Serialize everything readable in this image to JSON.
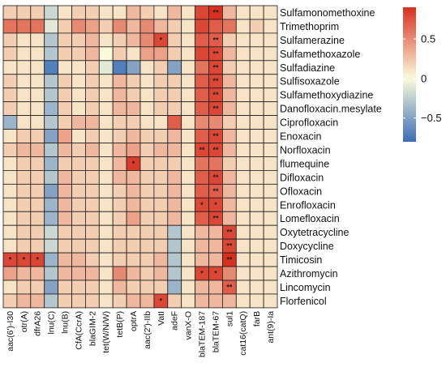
{
  "chart_data": {
    "type": "heatmap",
    "rows": [
      "Sulfamonomethoxine",
      "Trimethoprim",
      "Sulfamerazine",
      "Sulfamethoxazole",
      "Sulfadiazine",
      "Sulfisoxazole",
      "Sulfamethoxydiazine",
      "Danofloxacin.mesylate",
      "Ciprofloxacin",
      "Enoxacin",
      "Norfloxacin",
      "flumequine",
      "Difloxacin",
      "Ofloxacin",
      "Enrofloxacin",
      "Lomefloxacin",
      "Oxytetracycline",
      "Doxycycline",
      "Timicosin",
      "Azithromycin",
      "Lincomycin",
      "Florfenicol"
    ],
    "columns": [
      "aac(6')-I30",
      "otr(A)",
      "dfrA26",
      "lnu(C)",
      "lnu(B)",
      "CfA(CcrA)",
      "blaGIM-2",
      "tet(W/N/W)",
      "tetB(P)",
      "optrA",
      "aac(2')-IIb",
      "VatI",
      "adeF",
      "vanX-O",
      "blaTEM-187",
      "blaTEM-67",
      "sul1",
      "cat16(catQ)",
      "farB",
      "ant(9)-Ia"
    ],
    "values": [
      [
        0.2,
        0.2,
        0.2,
        -0.2,
        0.1,
        0.2,
        0.2,
        0.1,
        0.1,
        0.3,
        0.2,
        0.1,
        0.3,
        0.1,
        0.8,
        0.9,
        0.3,
        0.1,
        0.1,
        0.1
      ],
      [
        0.6,
        0.6,
        0.6,
        -0.1,
        0.2,
        0.5,
        0.4,
        0.2,
        0.5,
        0.3,
        0.5,
        0.3,
        0.2,
        0.1,
        0.8,
        0.7,
        0.6,
        0.1,
        0.2,
        0.1
      ],
      [
        0.2,
        0.1,
        0.1,
        -0.3,
        0.2,
        0.2,
        0.3,
        0.1,
        0.2,
        0.3,
        0.5,
        0.8,
        0.2,
        0.1,
        0.7,
        0.7,
        0.2,
        0.1,
        0.1,
        0.1
      ],
      [
        0.2,
        0.1,
        0.1,
        -0.3,
        0.2,
        0.2,
        0.3,
        0.0,
        0.2,
        0.1,
        0.4,
        0.4,
        0.2,
        0.1,
        0.8,
        0.8,
        0.3,
        0.1,
        0.1,
        0.1
      ],
      [
        0.1,
        0.1,
        0.1,
        -0.7,
        0.1,
        0.1,
        0.2,
        -0.1,
        -0.7,
        -0.5,
        0.1,
        0.2,
        -0.5,
        0.1,
        0.6,
        0.8,
        0.2,
        0.1,
        0.1,
        0.1
      ],
      [
        0.2,
        0.1,
        0.1,
        -0.3,
        0.2,
        0.1,
        0.2,
        0.1,
        0.3,
        0.2,
        0.1,
        0.2,
        0.2,
        0.1,
        0.7,
        0.8,
        0.3,
        0.1,
        0.1,
        0.1
      ],
      [
        0.2,
        0.1,
        0.1,
        -0.3,
        0.2,
        0.1,
        0.2,
        0.1,
        0.3,
        0.2,
        0.1,
        0.2,
        0.2,
        0.1,
        0.7,
        0.8,
        0.3,
        0.1,
        0.1,
        0.1
      ],
      [
        0.2,
        0.1,
        0.1,
        -0.4,
        0.2,
        0.1,
        0.2,
        0.1,
        0.3,
        0.3,
        0.1,
        0.2,
        0.2,
        0.1,
        0.7,
        0.8,
        0.3,
        0.1,
        0.1,
        0.1
      ],
      [
        -0.4,
        0.1,
        0.1,
        -0.3,
        0.2,
        0.3,
        0.3,
        0.1,
        0.2,
        0.2,
        0.1,
        0.1,
        0.7,
        0.1,
        0.5,
        0.5,
        0.2,
        0.1,
        0.1,
        0.1
      ],
      [
        0.1,
        0.2,
        0.2,
        -0.5,
        0.4,
        0.1,
        0.2,
        0.1,
        0.2,
        0.3,
        0.2,
        0.2,
        0.3,
        0.1,
        0.7,
        0.8,
        0.3,
        0.1,
        0.1,
        0.1
      ],
      [
        0.2,
        0.3,
        0.3,
        -0.3,
        0.3,
        0.2,
        0.3,
        0.1,
        0.3,
        0.4,
        0.2,
        0.3,
        0.3,
        0.1,
        0.8,
        0.8,
        0.3,
        0.1,
        0.1,
        0.1
      ],
      [
        0.1,
        0.2,
        0.2,
        -0.4,
        0.2,
        0.2,
        0.2,
        0.1,
        0.3,
        0.85,
        0.2,
        0.2,
        0.2,
        0.1,
        0.6,
        0.6,
        0.2,
        0.1,
        0.1,
        0.1
      ],
      [
        0.1,
        0.2,
        0.2,
        -0.3,
        0.3,
        0.2,
        0.2,
        0.1,
        0.3,
        0.3,
        0.2,
        0.2,
        0.3,
        0.1,
        0.7,
        0.8,
        0.3,
        0.1,
        0.1,
        0.1
      ],
      [
        0.1,
        0.2,
        0.2,
        -0.5,
        0.3,
        0.2,
        0.2,
        0.1,
        0.2,
        0.3,
        0.2,
        0.2,
        0.3,
        0.1,
        0.7,
        0.7,
        0.3,
        0.1,
        0.1,
        0.1
      ],
      [
        0.1,
        0.2,
        0.2,
        -0.4,
        0.3,
        0.2,
        0.2,
        0.1,
        0.2,
        0.3,
        0.2,
        0.2,
        0.3,
        0.1,
        0.8,
        0.8,
        0.3,
        0.1,
        0.1,
        0.1
      ],
      [
        0.1,
        0.2,
        0.2,
        -0.4,
        0.3,
        0.2,
        0.2,
        0.1,
        0.2,
        0.4,
        0.2,
        0.2,
        0.3,
        0.1,
        0.7,
        0.8,
        0.3,
        0.1,
        0.1,
        0.1
      ],
      [
        0.1,
        0.2,
        0.2,
        -0.2,
        0.2,
        0.2,
        0.2,
        0.1,
        0.2,
        0.2,
        0.2,
        0.2,
        -0.3,
        0.1,
        0.3,
        0.3,
        0.8,
        0.1,
        0.1,
        0.1
      ],
      [
        0.1,
        0.2,
        0.2,
        -0.2,
        0.2,
        0.2,
        0.2,
        0.1,
        0.2,
        0.2,
        0.2,
        0.2,
        -0.3,
        0.1,
        0.3,
        0.3,
        0.8,
        0.1,
        0.1,
        0.1
      ],
      [
        0.8,
        0.8,
        0.8,
        -0.4,
        0.3,
        0.3,
        0.2,
        0.1,
        0.2,
        0.2,
        0.2,
        0.3,
        -0.3,
        0.1,
        0.3,
        0.3,
        0.9,
        0.1,
        0.1,
        0.1
      ],
      [
        0.4,
        0.3,
        0.3,
        -0.3,
        0.3,
        0.3,
        0.3,
        0.1,
        0.5,
        0.3,
        0.2,
        0.3,
        -0.3,
        0.1,
        0.8,
        0.8,
        0.5,
        0.1,
        0.1,
        0.1
      ],
      [
        0.1,
        0.2,
        0.2,
        -0.5,
        0.2,
        0.2,
        0.2,
        0.1,
        0.3,
        0.2,
        0.2,
        0.2,
        -0.4,
        0.1,
        0.3,
        0.3,
        0.7,
        0.1,
        0.1,
        0.1
      ],
      [
        0.2,
        0.3,
        0.3,
        -0.3,
        0.2,
        0.2,
        0.2,
        0.1,
        0.2,
        0.3,
        0.3,
        0.8,
        0.2,
        0.1,
        0.3,
        0.3,
        0.3,
        0.1,
        0.1,
        0.1
      ]
    ],
    "significance": [
      [
        "",
        "",
        "",
        "",
        "",
        "",
        "",
        "",
        "",
        "",
        "",
        "",
        "",
        "",
        "",
        "**",
        "",
        "",
        "",
        ""
      ],
      [
        "",
        "",
        "",
        "",
        "",
        "",
        "",
        "",
        "",
        "",
        "",
        "",
        "",
        "",
        "",
        "",
        "",
        "",
        "",
        ""
      ],
      [
        "",
        "",
        "",
        "",
        "",
        "",
        "",
        "",
        "",
        "",
        "",
        "*",
        "",
        "",
        "",
        "**",
        "",
        "",
        "",
        ""
      ],
      [
        "",
        "",
        "",
        "",
        "",
        "",
        "",
        "",
        "",
        "",
        "",
        "",
        "",
        "",
        "",
        "**",
        "",
        "",
        "",
        ""
      ],
      [
        "",
        "",
        "",
        "",
        "",
        "",
        "",
        "",
        "",
        "",
        "",
        "",
        "",
        "",
        "",
        "**",
        "",
        "",
        "",
        ""
      ],
      [
        "",
        "",
        "",
        "",
        "",
        "",
        "",
        "",
        "",
        "",
        "",
        "",
        "",
        "",
        "",
        "**",
        "",
        "",
        "",
        ""
      ],
      [
        "",
        "",
        "",
        "",
        "",
        "",
        "",
        "",
        "",
        "",
        "",
        "",
        "",
        "",
        "",
        "**",
        "",
        "",
        "",
        ""
      ],
      [
        "",
        "",
        "",
        "",
        "",
        "",
        "",
        "",
        "",
        "",
        "",
        "",
        "",
        "",
        "",
        "**",
        "",
        "",
        "",
        ""
      ],
      [
        "",
        "",
        "",
        "",
        "",
        "",
        "",
        "",
        "",
        "",
        "",
        "",
        "",
        "",
        "",
        "",
        "",
        "",
        "",
        ""
      ],
      [
        "",
        "",
        "",
        "",
        "",
        "",
        "",
        "",
        "",
        "",
        "",
        "",
        "",
        "",
        "",
        "**",
        "",
        "",
        "",
        ""
      ],
      [
        "",
        "",
        "",
        "",
        "",
        "",
        "",
        "",
        "",
        "",
        "",
        "",
        "",
        "",
        "**",
        "**",
        "",
        "",
        "",
        ""
      ],
      [
        "",
        "",
        "",
        "",
        "",
        "",
        "",
        "",
        "",
        "*",
        "",
        "",
        "",
        "",
        "",
        "",
        "",
        "",
        "",
        ""
      ],
      [
        "",
        "",
        "",
        "",
        "",
        "",
        "",
        "",
        "",
        "",
        "",
        "",
        "",
        "",
        "",
        "**",
        "",
        "",
        "",
        ""
      ],
      [
        "",
        "",
        "",
        "",
        "",
        "",
        "",
        "",
        "",
        "",
        "",
        "",
        "",
        "",
        "",
        "**",
        "",
        "",
        "",
        ""
      ],
      [
        "",
        "",
        "",
        "",
        "",
        "",
        "",
        "",
        "",
        "",
        "",
        "",
        "",
        "",
        "*",
        "*",
        "",
        "",
        "",
        ""
      ],
      [
        "",
        "",
        "",
        "",
        "",
        "",
        "",
        "",
        "",
        "",
        "",
        "",
        "",
        "",
        "",
        "**",
        "",
        "",
        "",
        ""
      ],
      [
        "",
        "",
        "",
        "",
        "",
        "",
        "",
        "",
        "",
        "",
        "",
        "",
        "",
        "",
        "",
        "",
        "**",
        "",
        "",
        ""
      ],
      [
        "",
        "",
        "",
        "",
        "",
        "",
        "",
        "",
        "",
        "",
        "",
        "",
        "",
        "",
        "",
        "",
        "**",
        "",
        "",
        ""
      ],
      [
        "*",
        "*",
        "*",
        "",
        "",
        "",
        "",
        "",
        "",
        "",
        "",
        "",
        "",
        "",
        "",
        "",
        "**",
        "",
        "",
        ""
      ],
      [
        "",
        "",
        "",
        "",
        "",
        "",
        "",
        "",
        "",
        "",
        "",
        "",
        "",
        "",
        "*",
        "*",
        "",
        "",
        "",
        ""
      ],
      [
        "",
        "",
        "",
        "",
        "",
        "",
        "",
        "",
        "",
        "",
        "",
        "",
        "",
        "",
        "",
        "",
        "**",
        "",
        "",
        ""
      ],
      [
        "",
        "",
        "",
        "",
        "",
        "",
        "",
        "",
        "",
        "",
        "",
        "*",
        "",
        "",
        "",
        "",
        "",
        "",
        "",
        ""
      ]
    ],
    "colorscale": {
      "min": -0.8,
      "mid": 0,
      "max": 0.9,
      "low_color": "#3b6db5",
      "mid_color": "#fbfbdc",
      "high_color": "#d7301f"
    },
    "legend": {
      "ticks": [
        {
          "value": 0.5,
          "label": "0.5"
        },
        {
          "value": 0,
          "label": "0"
        },
        {
          "value": -0.5,
          "label": "−0.5"
        }
      ],
      "placement": "top-right"
    }
  }
}
